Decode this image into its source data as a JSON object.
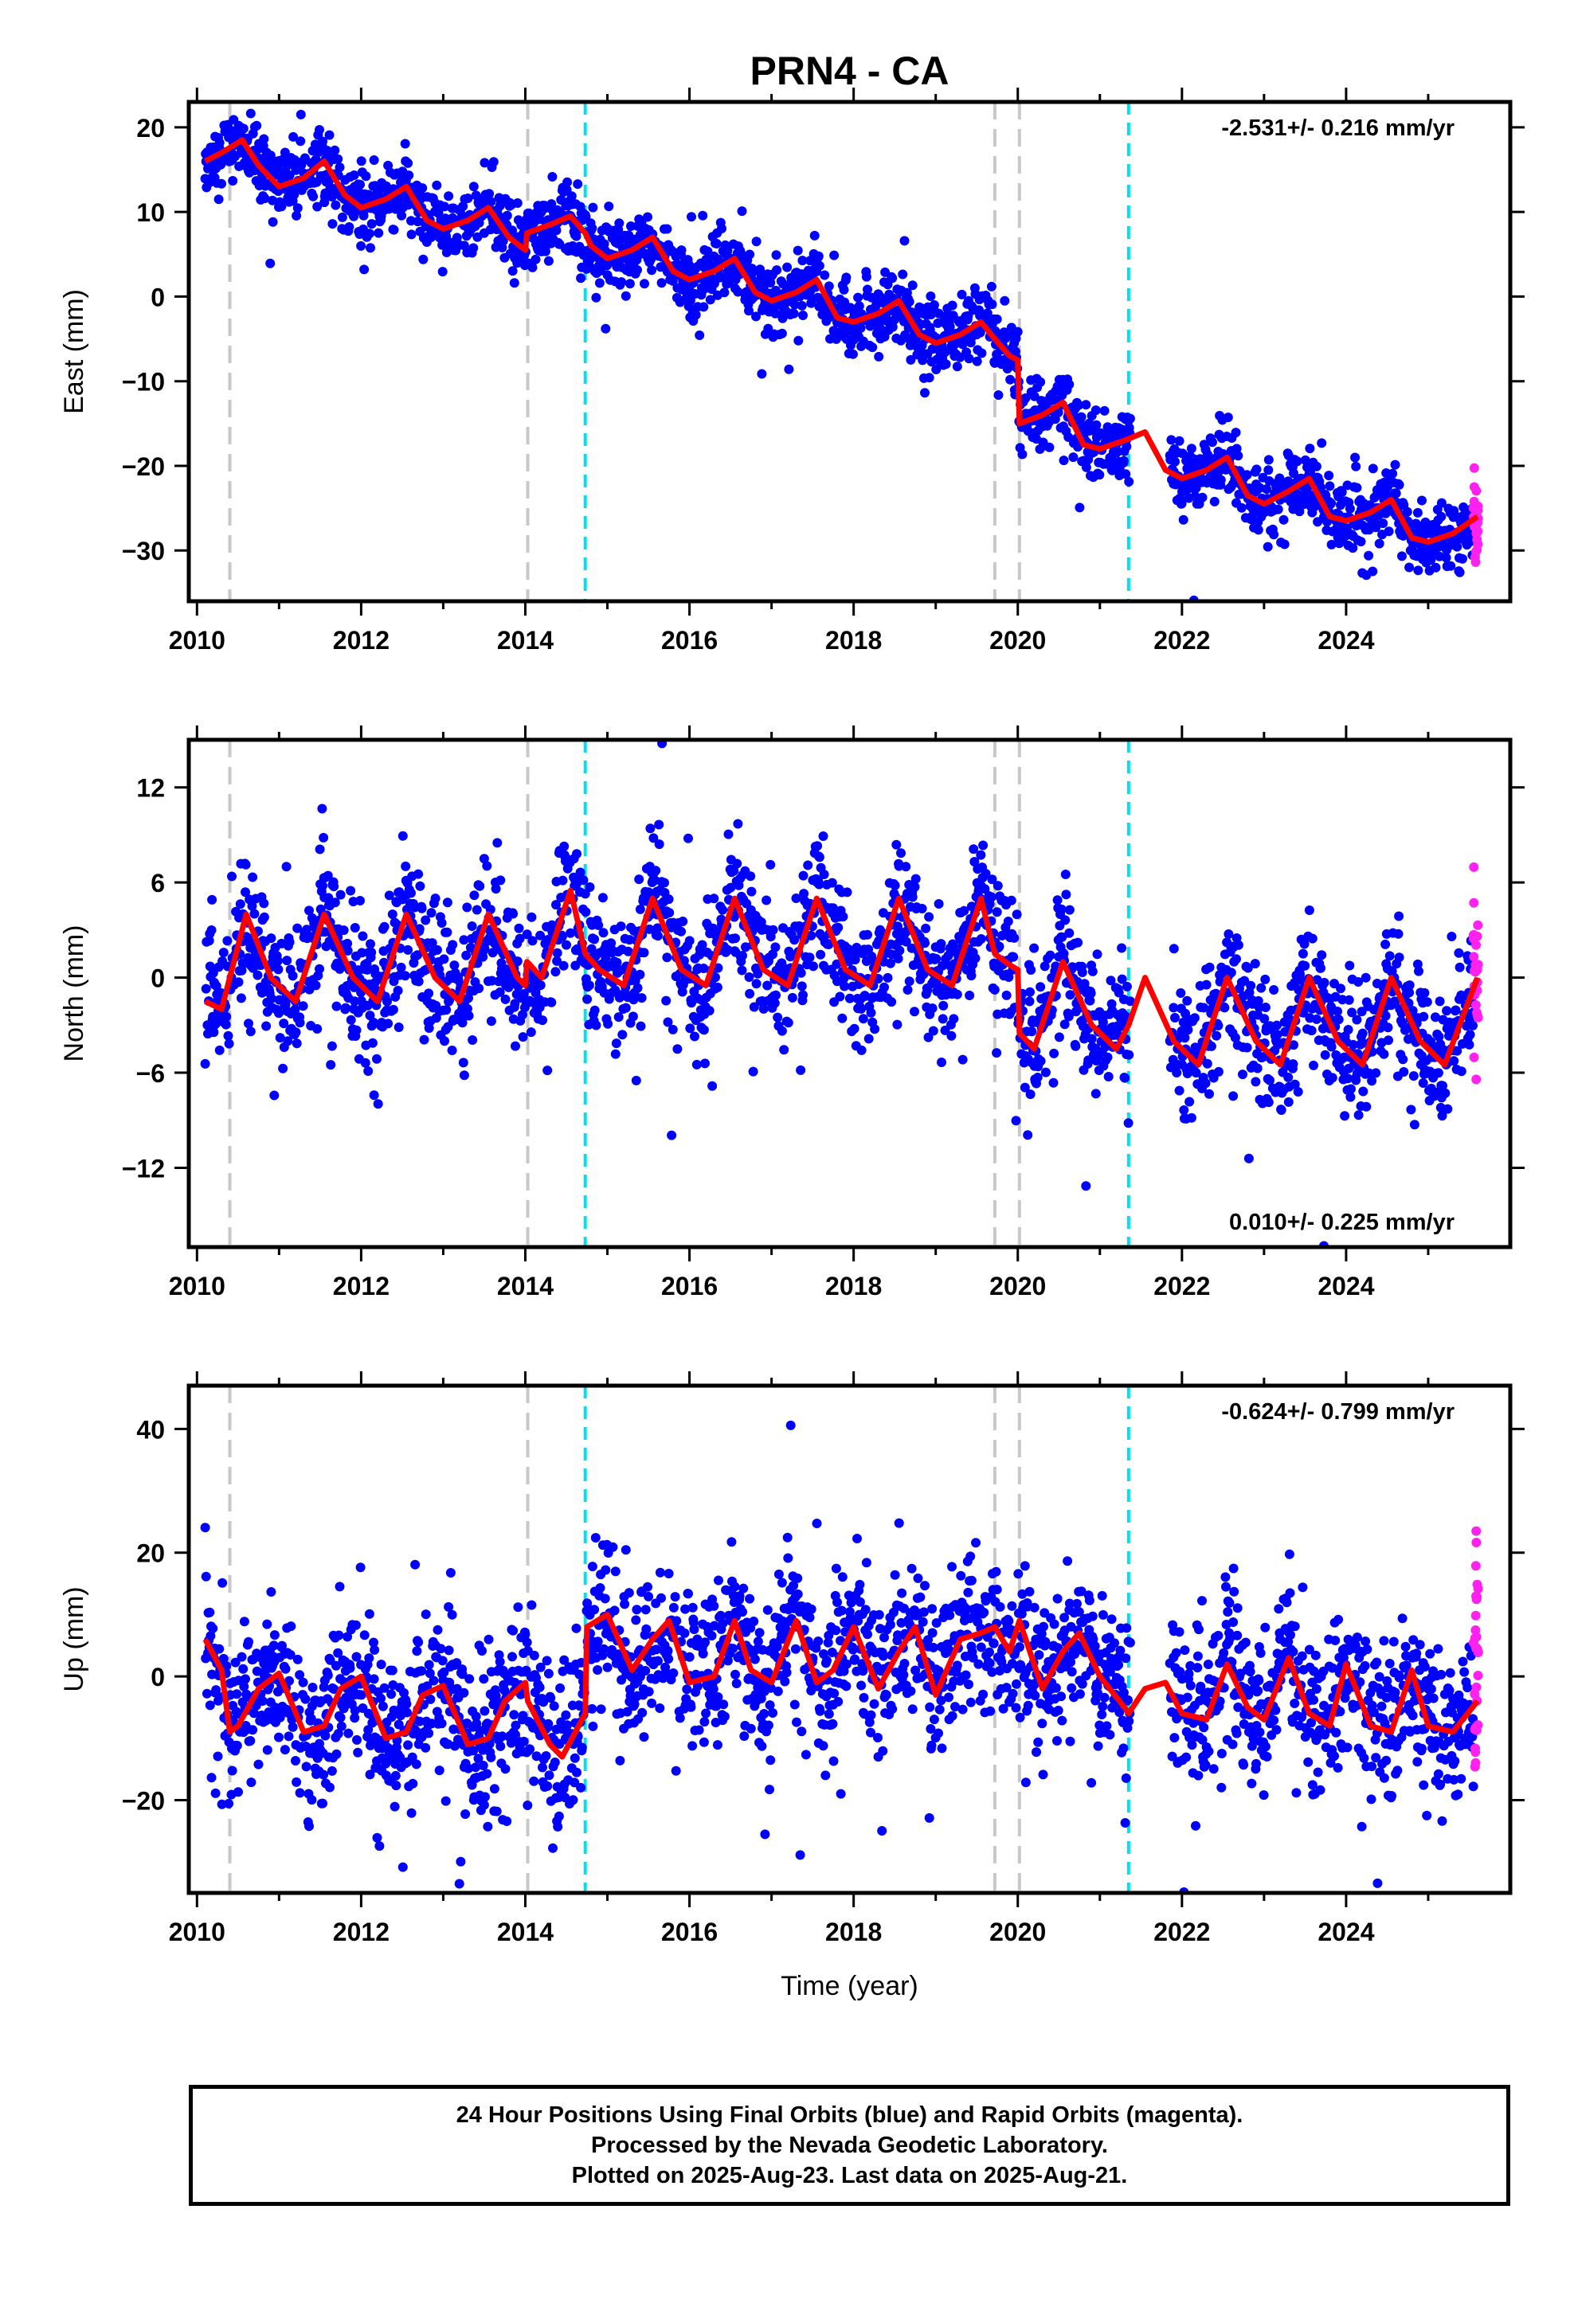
{
  "chart_data": [
    {
      "type": "scatter",
      "title": "PRN4 - CA",
      "ylabel": "East (mm)",
      "xlabel": "",
      "rate_text": "-2.531+/- 0.216 mm/yr",
      "rate_position": "top-right",
      "xlim": [
        2009.9,
        2026.0
      ],
      "ylim": [
        -36,
        23
      ],
      "x_ticks": [
        2010,
        2012,
        2014,
        2016,
        2018,
        2020,
        2022,
        2024
      ],
      "x_tick_labels": [
        "2010",
        "2012",
        "2014",
        "2016",
        "2018",
        "2020",
        "2022",
        "2024"
      ],
      "y_ticks": [
        -30,
        -20,
        -10,
        0,
        10,
        20
      ],
      "y_tick_labels": [
        "−30",
        "−20",
        "−10",
        "0",
        "10",
        "20"
      ],
      "grid": false,
      "colors": {
        "final": "#0000ff",
        "rapid": "#ff22ee",
        "model": "#ff0000",
        "offset_gray": "#c8c8c8",
        "offset_cyan": "#00e0f0"
      },
      "model": {
        "x": [
          2010.1,
          2010.3,
          2010.55,
          2010.75,
          2011.0,
          2011.3,
          2011.55,
          2011.8,
          2012.0,
          2012.3,
          2012.55,
          2012.8,
          2013.0,
          2013.3,
          2013.55,
          2013.8,
          2014.0,
          2014.02,
          2014.3,
          2014.55,
          2014.73,
          2014.8,
          2015.0,
          2015.3,
          2015.55,
          2015.8,
          2016.0,
          2016.3,
          2016.55,
          2016.8,
          2017.0,
          2017.3,
          2017.55,
          2017.8,
          2018.0,
          2018.3,
          2018.55,
          2018.8,
          2019.0,
          2019.3,
          2019.55,
          2019.72,
          2019.9,
          2020.0,
          2020.02,
          2020.3,
          2020.55,
          2020.8,
          2021.0,
          2021.3,
          2021.55,
          2021.8,
          2022.0,
          2022.3,
          2022.55,
          2022.8,
          2023.0,
          2023.3,
          2023.55,
          2023.8,
          2024.0,
          2024.3,
          2024.55,
          2024.8,
          2025.0,
          2025.3,
          2025.6
        ],
        "y": [
          16,
          17,
          18.5,
          15.5,
          13,
          14,
          16,
          12,
          10.5,
          11.5,
          13,
          9,
          8,
          9,
          10.5,
          7,
          5.5,
          7.5,
          8.5,
          9.5,
          7.5,
          6,
          4.5,
          5.5,
          7,
          3,
          2,
          3,
          4.5,
          0.5,
          -0.5,
          0.5,
          2,
          -2.5,
          -3,
          -2,
          -0.5,
          -4.5,
          -5.5,
          -4.5,
          -3,
          -5,
          -7,
          -7.5,
          -15,
          -14,
          -12.5,
          -17.5,
          -18,
          -17,
          -16,
          -20.5,
          -21.5,
          -20.5,
          -19,
          -23.5,
          -24.5,
          -23,
          -21.5,
          -26,
          -26.5,
          -25.5,
          -24,
          -28.5,
          -29,
          -28,
          -26
        ]
      },
      "offsets_gray": [
        2010.4,
        2014.03,
        2019.72,
        2020.02
      ],
      "offsets_cyan": [
        2014.73,
        2021.35
      ]
    },
    {
      "type": "scatter",
      "title": "",
      "ylabel": "North (mm)",
      "xlabel": "",
      "rate_text": "0.010+/- 0.225 mm/yr",
      "rate_position": "bottom-right",
      "xlim": [
        2009.9,
        2026.0
      ],
      "ylim": [
        -17,
        15
      ],
      "x_ticks": [
        2010,
        2012,
        2014,
        2016,
        2018,
        2020,
        2022,
        2024
      ],
      "x_tick_labels": [
        "2010",
        "2012",
        "2014",
        "2016",
        "2018",
        "2020",
        "2022",
        "2024"
      ],
      "y_ticks": [
        -12,
        -6,
        0,
        6,
        12
      ],
      "y_tick_labels": [
        "−12",
        "−6",
        "0",
        "6",
        "12"
      ],
      "grid": false,
      "model": {
        "x": [
          2010.1,
          2010.3,
          2010.6,
          2010.9,
          2011.2,
          2011.55,
          2011.9,
          2012.2,
          2012.55,
          2012.9,
          2013.2,
          2013.55,
          2013.9,
          2014.0,
          2014.02,
          2014.2,
          2014.55,
          2014.73,
          2014.9,
          2015.2,
          2015.55,
          2015.9,
          2016.2,
          2016.55,
          2016.9,
          2017.2,
          2017.55,
          2017.9,
          2018.2,
          2018.55,
          2018.9,
          2019.2,
          2019.55,
          2019.72,
          2019.9,
          2020.0,
          2020.02,
          2020.2,
          2020.55,
          2020.9,
          2021.2,
          2021.35,
          2021.55,
          2021.9,
          2022.2,
          2022.55,
          2022.9,
          2023.2,
          2023.55,
          2023.9,
          2024.2,
          2024.55,
          2024.9,
          2025.2,
          2025.6
        ],
        "y": [
          -1.5,
          -2,
          4,
          0,
          -1.5,
          4,
          0,
          -1.5,
          4,
          0,
          -1.5,
          4,
          0,
          -0.5,
          1,
          0,
          5.5,
          1.5,
          0.5,
          -0.5,
          5,
          0.5,
          -0.5,
          5,
          0.5,
          -0.5,
          5,
          0.5,
          -0.5,
          5,
          0.5,
          -0.5,
          5,
          1.5,
          0.8,
          0.5,
          -3.5,
          -4.5,
          1,
          -3,
          -4.5,
          -3,
          0,
          -4,
          -5.5,
          0,
          -4,
          -5.5,
          0,
          -4,
          -5.5,
          0,
          -4,
          -5.5,
          0
        ]
      },
      "offsets_gray": [
        2010.4,
        2014.03,
        2019.72,
        2020.02
      ],
      "offsets_cyan": [
        2014.73,
        2021.35
      ]
    },
    {
      "type": "scatter",
      "title": "",
      "ylabel": "Up (mm)",
      "xlabel": "Time (year)",
      "rate_text": "-0.624+/- 0.799 mm/yr",
      "rate_position": "top-right",
      "xlim": [
        2009.9,
        2026.0
      ],
      "ylim": [
        -35,
        47
      ],
      "x_ticks": [
        2010,
        2012,
        2014,
        2016,
        2018,
        2020,
        2022,
        2024
      ],
      "x_tick_labels": [
        "2010",
        "2012",
        "2014",
        "2016",
        "2018",
        "2020",
        "2022",
        "2024"
      ],
      "y_ticks": [
        -20,
        0,
        20,
        40
      ],
      "y_tick_labels": [
        "−20",
        "0",
        "20",
        "40"
      ],
      "grid": false,
      "model": {
        "x": [
          2010.1,
          2010.3,
          2010.4,
          2010.5,
          2010.75,
          2011.0,
          2011.3,
          2011.55,
          2011.75,
          2012.0,
          2012.3,
          2012.55,
          2012.75,
          2013.0,
          2013.3,
          2013.55,
          2013.75,
          2014.0,
          2014.03,
          2014.3,
          2014.45,
          2014.73,
          2014.75,
          2015.0,
          2015.3,
          2015.55,
          2015.75,
          2016.0,
          2016.3,
          2016.55,
          2016.75,
          2017.0,
          2017.3,
          2017.55,
          2017.75,
          2018.0,
          2018.3,
          2018.55,
          2018.75,
          2019.0,
          2019.3,
          2019.55,
          2019.72,
          2019.9,
          2020.02,
          2020.3,
          2020.55,
          2020.75,
          2021.0,
          2021.3,
          2021.35,
          2021.55,
          2021.8,
          2022.0,
          2022.3,
          2022.55,
          2022.8,
          2023.0,
          2023.3,
          2023.55,
          2023.8,
          2024.0,
          2024.3,
          2024.55,
          2024.8,
          2025.0,
          2025.3,
          2025.6
        ],
        "y": [
          6,
          1,
          -9,
          -8,
          -2,
          0.5,
          -9,
          -8,
          -2,
          0,
          -10,
          -9,
          -3,
          -1.5,
          -11,
          -10,
          -4,
          -1,
          -4,
          -11,
          -13,
          -6,
          8,
          10,
          1,
          6,
          9,
          -1,
          0,
          9,
          1,
          -1,
          9,
          -1,
          1,
          8,
          -2,
          4,
          8,
          -3,
          6,
          7,
          8,
          4,
          9,
          -2,
          4,
          7,
          0,
          -5,
          -6,
          -2,
          -1,
          -6,
          -7,
          2,
          -5,
          -7,
          3,
          -6,
          -8,
          2,
          -8,
          -9,
          1,
          -8,
          -9,
          -4
        ]
      },
      "offsets_gray": [
        2010.4,
        2014.03,
        2019.72,
        2020.02
      ],
      "offsets_cyan": [
        2014.73,
        2021.35
      ]
    }
  ],
  "footer": {
    "line1": "24 Hour Positions Using Final Orbits (blue) and Rapid Orbits (magenta).",
    "line2": "Processed by the Nevada Geodetic Laboratory.",
    "line3": "Plotted on 2025-Aug-23. Last data on 2025-Aug-21."
  }
}
